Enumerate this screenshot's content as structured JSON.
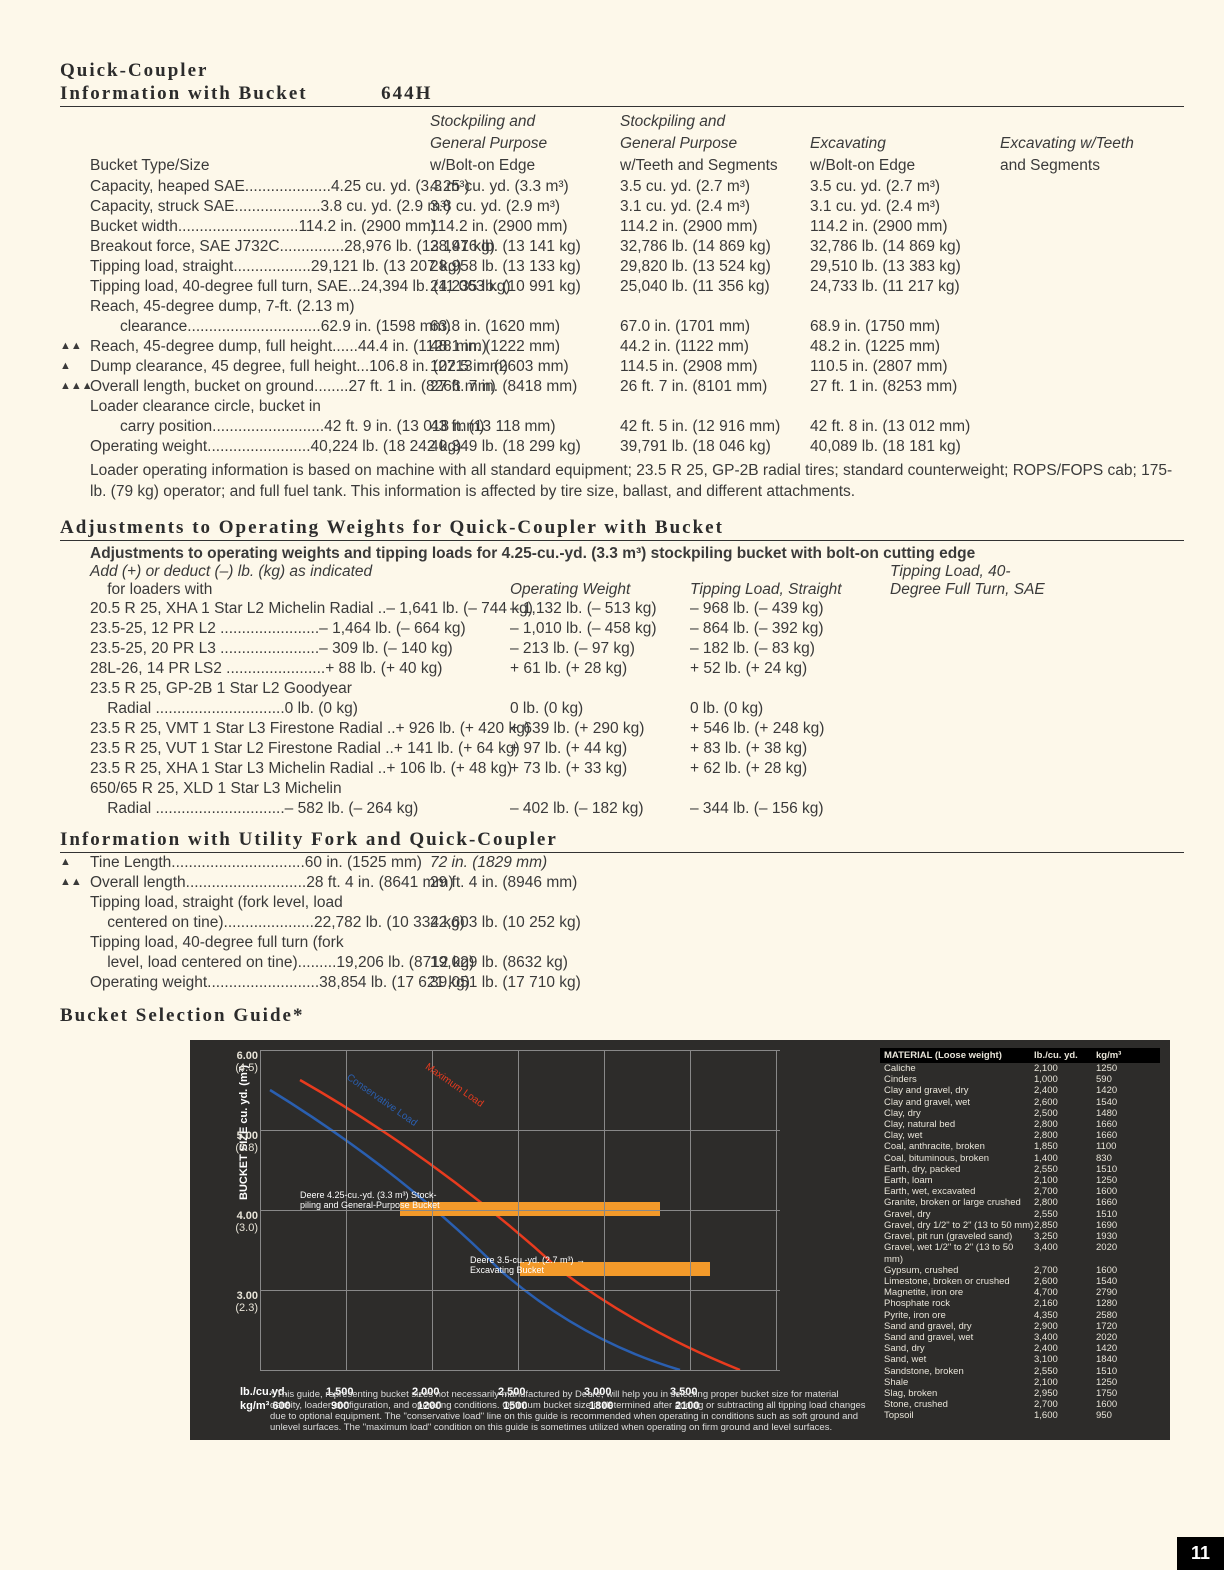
{
  "section1": {
    "title_l1": "Quick-Coupler",
    "title_l2": "Information with Bucket",
    "model": "644H",
    "head_row0": [
      "",
      "Stockpiling and",
      "Stockpiling and",
      "",
      ""
    ],
    "head_row1": [
      "",
      "General Purpose",
      "General Purpose",
      "Excavating",
      "Excavating w/Teeth"
    ],
    "head_row2": [
      "Bucket Type/Size",
      "w/Bolt-on Edge",
      "w/Teeth and Segments",
      "w/Bolt-on Edge",
      "and Segments"
    ],
    "rows": [
      {
        "m": "",
        "i": 1,
        "l": "Capacity, heaped SAE",
        "c": [
          "4.25 cu. yd. (3.3 m³)",
          "4.25 cu. yd. (3.3 m³)",
          "3.5 cu. yd. (2.7 m³)",
          "3.5 cu. yd. (2.7 m³)"
        ]
      },
      {
        "m": "",
        "i": 1,
        "l": "Capacity, struck SAE",
        "c": [
          "3.8 cu. yd. (2.9 m³)",
          "3.8 cu. yd. (2.9 m³)",
          "3.1 cu. yd. (2.4 m³)",
          "3.1 cu. yd. (2.4 m³)"
        ]
      },
      {
        "m": "",
        "i": 1,
        "l": "Bucket width",
        "c": [
          "114.2 in. (2900 mm)",
          "114.2 in. (2900 mm)",
          "114.2 in. (2900 mm)",
          "114.2 in. (2900 mm)"
        ]
      },
      {
        "m": "",
        "i": 1,
        "l": "Breakout force, SAE J732C",
        "c": [
          "28,976 lb. (13 141 kg)",
          "28,976 lb. (13 141 kg)",
          "32,786 lb. (14 869 kg)",
          "32,786 lb. (14 869 kg)"
        ]
      },
      {
        "m": "",
        "i": 1,
        "l": "Tipping load, straight",
        "c": [
          "29,121 lb. (13 207 kg)",
          "28,958 lb. (13 133 kg)",
          "29,820 lb. (13 524 kg)",
          "29,510 lb. (13 383 kg)"
        ]
      },
      {
        "m": "",
        "i": 1,
        "l": "Tipping load, 40-degree full turn, SAE",
        "c": [
          "24,394 lb. (11 063 kg)",
          "24,235 lb. (10 991 kg)",
          "25,040 lb. (11 356 kg)",
          "24,733 lb. (11 217 kg)"
        ]
      },
      {
        "m": "",
        "i": 1,
        "l": "Reach, 45-degree dump, 7-ft. (2.13 m)",
        "c": [
          "",
          "",
          "",
          ""
        ]
      },
      {
        "m": "",
        "i": 2,
        "l": "clearance",
        "c": [
          "62.9 in. (1598 mm)",
          "63.8 in. (1620 mm)",
          "67.0 in. (1701 mm)",
          "68.9 in. (1750 mm)"
        ]
      },
      {
        "m": "▲▲",
        "i": 0,
        "l": "Reach, 45-degree dump, full height",
        "c": [
          "44.4 in. (1128 mm)",
          "48.1 in. (1222 mm)",
          "44.2 in. (1122 mm)",
          "48.2 in. (1225 mm)"
        ]
      },
      {
        "m": "▲",
        "i": 0,
        "l": "Dump clearance, 45 degree, full height",
        "c": [
          "106.8 in. (2713 mm)",
          "102.5 in. (2603 mm)",
          "114.5 in. (2908 mm)",
          "110.5 in. (2807 mm)"
        ]
      },
      {
        "m": "▲▲▲",
        "i": 0,
        "l": "Overall length, bucket on ground",
        "c": [
          "27 ft. 1 in. (8266 mm)",
          "27 ft. 7 in. (8418 mm)",
          "26 ft. 7 in. (8101 mm)",
          "27 ft. 1 in. (8253 mm)"
        ]
      },
      {
        "m": "",
        "i": 1,
        "l": "Loader clearance circle, bucket in",
        "c": [
          "",
          "",
          "",
          ""
        ]
      },
      {
        "m": "",
        "i": 2,
        "l": "carry position",
        "c": [
          "42 ft. 9 in. (13 018 mm)",
          "43 ft. (13 118 mm)",
          "42 ft. 5 in. (12 916 mm)",
          "42 ft. 8 in. (13 012 mm)"
        ]
      },
      {
        "m": "",
        "i": 1,
        "l": "Operating weight",
        "c": [
          "40,224 lb. (18 242 kg)",
          "40,349 lb. (18 299 kg)",
          "39,791 lb. (18 046 kg)",
          "40,089 lb. (18 181 kg)"
        ]
      }
    ],
    "note": "Loader operating information is based on machine with all standard equipment; 23.5 R 25, GP-2B radial tires; standard counterweight; ROPS/FOPS cab; 175-lb. (79 kg) operator; and full fuel tank. This information is affected by tire size, ballast, and different attachments."
  },
  "section2": {
    "title": "Adjustments to Operating Weights for Quick-Coupler with Bucket",
    "subtitle": "Adjustments to operating weights and tipping loads for 4.25-cu.-yd. (3.3 m³) stockpiling bucket with bolt-on cutting edge",
    "head0": [
      "Add (+) or deduct (–) lb. (kg) as indicated",
      "",
      "",
      "Tipping Load, 40-"
    ],
    "head1": [
      "    for loaders with",
      "Operating Weight",
      "Tipping Load, Straight",
      "Degree Full Turn, SAE"
    ],
    "rows": [
      {
        "l": "20.5 R 25, XHA 1 Star L2 Michelin Radial",
        "c": [
          "– 1,641 lb. (– 744 kg)",
          "– 1,132 lb. (– 513 kg)",
          "– 968 lb. (– 439 kg)"
        ]
      },
      {
        "l": "23.5-25, 12 PR L2",
        "c": [
          "– 1,464 lb. (– 664 kg)",
          "– 1,010 lb. (– 458 kg)",
          "– 864 lb. (– 392 kg)"
        ]
      },
      {
        "l": "23.5-25, 20 PR L3",
        "c": [
          "– 309 lb. (– 140 kg)",
          "– 213 lb. (– 97 kg)",
          "– 182 lb. (– 83 kg)"
        ]
      },
      {
        "l": "28L-26, 14 PR LS2",
        "c": [
          "+ 88 lb. (+ 40 kg)",
          "+ 61 lb. (+ 28 kg)",
          "+ 52 lb. (+ 24 kg)"
        ]
      },
      {
        "l": "23.5 R 25, GP-2B 1 Star L2 Goodyear",
        "c": [
          "",
          "",
          ""
        ]
      },
      {
        "l": "    Radial",
        "c": [
          "0 lb. (0 kg)",
          "0 lb. (0 kg)",
          "0 lb. (0 kg)"
        ]
      },
      {
        "l": "23.5 R 25, VMT 1 Star L3 Firestone Radial",
        "c": [
          "+ 926 lb. (+ 420 kg)",
          "+ 639 lb. (+ 290 kg)",
          "+ 546 lb. (+ 248 kg)"
        ]
      },
      {
        "l": "23.5 R 25, VUT 1 Star L2 Firestone Radial",
        "c": [
          "+ 141 lb. (+ 64 kg)",
          "+ 97 lb. (+ 44 kg)",
          "+ 83 lb. (+ 38 kg)"
        ]
      },
      {
        "l": "23.5 R 25, XHA 1 Star L3 Michelin Radial",
        "c": [
          "+ 106 lb. (+ 48 kg)",
          "+ 73 lb. (+ 33 kg)",
          "+ 62 lb. (+ 28 kg)"
        ]
      },
      {
        "l": "650/65 R 25, XLD 1 Star L3 Michelin",
        "c": [
          "",
          "",
          ""
        ]
      },
      {
        "l": "    Radial",
        "c": [
          "– 582 lb. (– 264 kg)",
          "– 402 lb. (– 182 kg)",
          "– 344 lb. (– 156 kg)"
        ]
      }
    ]
  },
  "section3": {
    "title": "Information with Utility Fork and Quick-Coupler",
    "rows": [
      {
        "m": "▲",
        "l": "Tine Length",
        "c": [
          "60 in. (1525 mm)",
          "72 in. (1829 mm)"
        ],
        "ital": true
      },
      {
        "m": "▲▲",
        "l": "Overall length",
        "c": [
          "28 ft. 4 in. (8641 mm)",
          "29 ft. 4 in. (8946 mm)"
        ]
      },
      {
        "m": "",
        "l": "Tipping load, straight (fork level, load",
        "c": [
          "",
          ""
        ]
      },
      {
        "m": "",
        "l": "    centered on tine)",
        "c": [
          "22,782 lb. (10 334 kg)",
          "22,603 lb. (10 252 kg)"
        ]
      },
      {
        "m": "",
        "l": "Tipping load, 40-degree full turn (fork",
        "c": [
          "",
          ""
        ]
      },
      {
        "m": "",
        "l": "    level, load centered on tine)",
        "c": [
          "19,206 lb. (8712 kg)",
          "19,029 lb. (8632 kg)"
        ]
      },
      {
        "m": "",
        "l": "Operating weight",
        "c": [
          "38,854 lb. (17 621 kg)",
          "39,051 lb. (17 710 kg)"
        ]
      }
    ]
  },
  "chart": {
    "title": "Bucket Selection Guide*",
    "ylabel": "BUCKET SIZE cu. yd. (m³)",
    "yticks": [
      {
        "v": "6.00",
        "s": "(4.5)",
        "p": 0
      },
      {
        "v": "5.00",
        "s": "(3.8)",
        "p": 80
      },
      {
        "v": "4.00",
        "s": "(3.0)",
        "p": 160
      },
      {
        "v": "3.00",
        "s": "(2.3)",
        "p": 240
      }
    ],
    "xticks_top": [
      "lb./cu.yd.",
      "1,500",
      "2,000",
      "2,500",
      "3,000",
      "3,500"
    ],
    "xticks_bot": [
      "kg/m³  600",
      "900",
      "1200",
      "1500",
      "1800",
      "2100"
    ],
    "curve_colors": {
      "max": "#e83b1e",
      "cons": "#2a5fb0",
      "bar": "#f39a2a"
    },
    "annot1": "Deere 4.25-cu.-yd. (3.3 m³) Stock-\npiling and General-Purpose Bucket",
    "annot2": "Deere 3.5-cu.-yd. (2.7 m³) →\nExcavating Bucket",
    "curve_lbl_max": "Maximum Load",
    "curve_lbl_cons": "Conservative Load",
    "mat_head": [
      "MATERIAL (Loose weight)",
      "lb./cu. yd.",
      "kg/m³"
    ],
    "materials": [
      [
        "Caliche",
        "2,100",
        "1250"
      ],
      [
        "Cinders",
        "1,000",
        "590"
      ],
      [
        "Clay and gravel, dry",
        "2,400",
        "1420"
      ],
      [
        "Clay and gravel, wet",
        "2,600",
        "1540"
      ],
      [
        "Clay, dry",
        "2,500",
        "1480"
      ],
      [
        "Clay, natural bed",
        "2,800",
        "1660"
      ],
      [
        "Clay, wet",
        "2,800",
        "1660"
      ],
      [
        "Coal, anthracite, broken",
        "1,850",
        "1100"
      ],
      [
        "Coal, bituminous, broken",
        "1,400",
        "830"
      ],
      [
        "Earth, dry, packed",
        "2,550",
        "1510"
      ],
      [
        "Earth, loam",
        "2,100",
        "1250"
      ],
      [
        "Earth, wet, excavated",
        "2,700",
        "1600"
      ],
      [
        "Granite, broken or large crushed",
        "2,800",
        "1660"
      ],
      [
        "Gravel, dry",
        "2,550",
        "1510"
      ],
      [
        "Gravel, dry 1/2\" to 2\" (13 to 50 mm)",
        "2,850",
        "1690"
      ],
      [
        "Gravel, pit run (graveled sand)",
        "3,250",
        "1930"
      ],
      [
        "Gravel, wet 1/2\" to 2\" (13 to 50 mm)",
        "3,400",
        "2020"
      ],
      [
        "Gypsum, crushed",
        "2,700",
        "1600"
      ],
      [
        "Limestone, broken or crushed",
        "2,600",
        "1540"
      ],
      [
        "Magnetite, iron ore",
        "4,700",
        "2790"
      ],
      [
        "Phosphate rock",
        "2,160",
        "1280"
      ],
      [
        "Pyrite, iron ore",
        "4,350",
        "2580"
      ],
      [
        "Sand and gravel, dry",
        "2,900",
        "1720"
      ],
      [
        "Sand and gravel, wet",
        "3,400",
        "2020"
      ],
      [
        "Sand, dry",
        "2,400",
        "1420"
      ],
      [
        "Sand, wet",
        "3,100",
        "1840"
      ],
      [
        "Sandstone, broken",
        "2,550",
        "1510"
      ],
      [
        "Shale",
        "2,100",
        "1250"
      ],
      [
        "Slag, broken",
        "2,950",
        "1750"
      ],
      [
        "Stone, crushed",
        "2,700",
        "1600"
      ],
      [
        "Topsoil",
        "1,600",
        "950"
      ]
    ],
    "footnote": "* This guide, representing bucket sizes not necessarily manufactured by Deere, will help you in selecting proper bucket size for material density, loader configuration, and operating conditions. Optimum bucket size is determined after adding or subtracting all tipping load changes due to optional equipment. The \"conservative load\" line on this guide is recommended when operating in conditions such as soft ground and unlevel surfaces. The \"maximum load\" condition on this guide is sometimes utilized when operating on firm ground and level surfaces."
  },
  "page": "11"
}
